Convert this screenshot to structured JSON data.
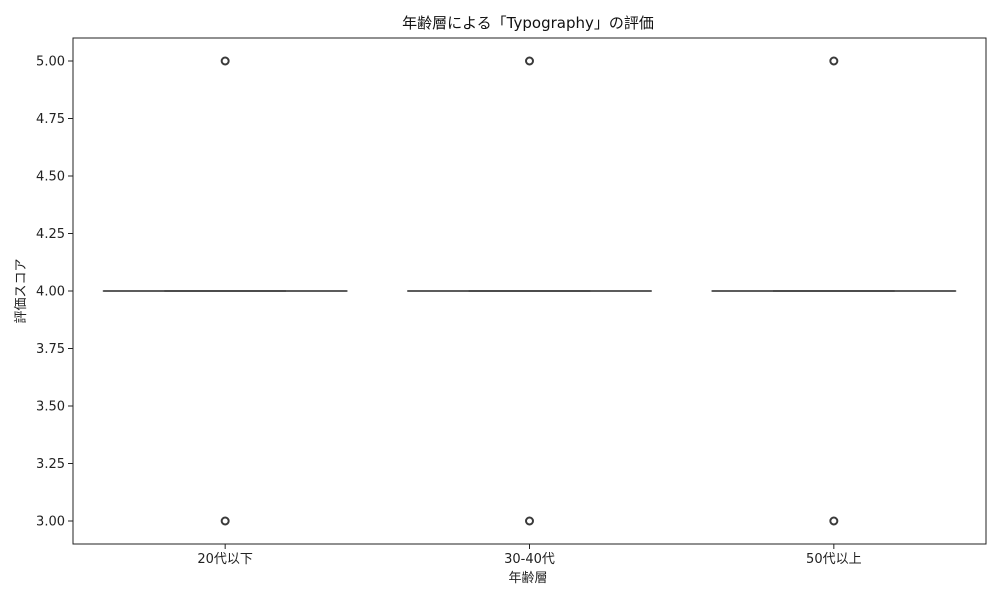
{
  "chart_data": {
    "type": "box",
    "title": "年齢層による「Typography」の評価",
    "xlabel": "年齢層",
    "ylabel": "評価スコア",
    "categories": [
      "20代以下",
      "30-40代",
      "50代以上"
    ],
    "ylim": [
      2.9,
      5.1
    ],
    "yticks": [
      "3.00",
      "3.25",
      "3.50",
      "3.75",
      "4.00",
      "4.25",
      "4.50",
      "4.75",
      "5.00"
    ],
    "boxes": [
      {
        "category": "20代以下",
        "q1": 4.0,
        "median": 4.0,
        "q3": 4.0,
        "whisker_low": 4.0,
        "whisker_high": 4.0,
        "outliers": [
          3.0,
          5.0
        ]
      },
      {
        "category": "30-40代",
        "q1": 4.0,
        "median": 4.0,
        "q3": 4.0,
        "whisker_low": 4.0,
        "whisker_high": 4.0,
        "outliers": [
          3.0,
          5.0
        ]
      },
      {
        "category": "50代以上",
        "q1": 4.0,
        "median": 4.0,
        "q3": 4.0,
        "whisker_low": 4.0,
        "whisker_high": 4.0,
        "outliers": [
          3.0,
          5.0
        ]
      }
    ],
    "box_color": "#1f77b4",
    "line_color": "#3a3a3a",
    "grid": false,
    "legend": "none"
  }
}
